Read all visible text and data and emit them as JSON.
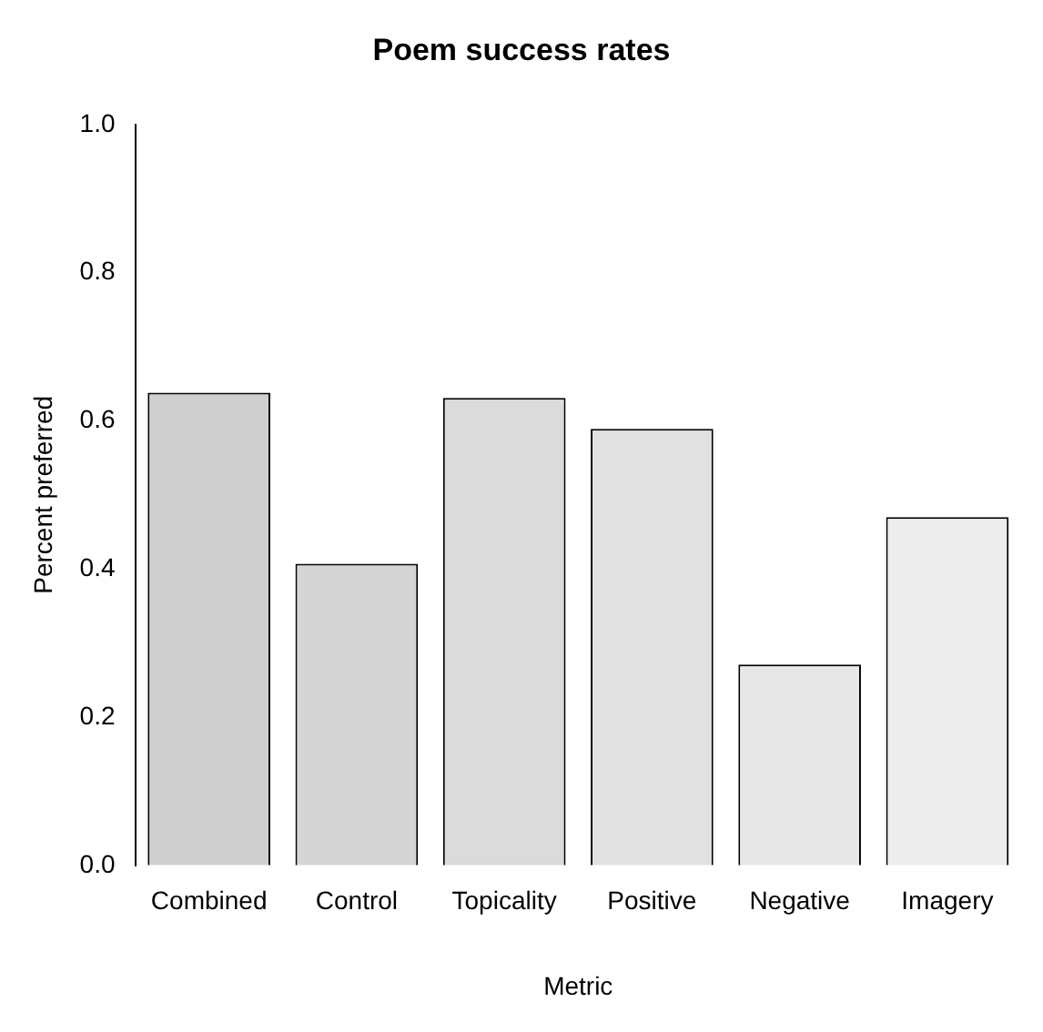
{
  "chart_data": {
    "type": "bar",
    "title": "Poem success rates",
    "xlabel": "Metric",
    "ylabel": "Percent preferred",
    "categories": [
      "Combined",
      "Control",
      "Topicality",
      "Positive",
      "Negative",
      "Imagery"
    ],
    "values": [
      0.638,
      0.407,
      0.631,
      0.589,
      0.271,
      0.47
    ],
    "colors": [
      "#cfcfcf",
      "#d5d5d5",
      "#dbdbdb",
      "#e1e1e1",
      "#e7e7e7",
      "#ededed"
    ],
    "ylim": [
      0,
      1
    ],
    "yticks": [
      {
        "value": 0,
        "label": "0.0"
      },
      {
        "value": 0.2,
        "label": "0.2"
      },
      {
        "value": 0.4,
        "label": "0.4"
      },
      {
        "value": 0.6,
        "label": "0.6"
      },
      {
        "value": 0.8,
        "label": "0.8"
      },
      {
        "value": 1,
        "label": "1.0"
      }
    ],
    "grid": false,
    "legend": false
  }
}
